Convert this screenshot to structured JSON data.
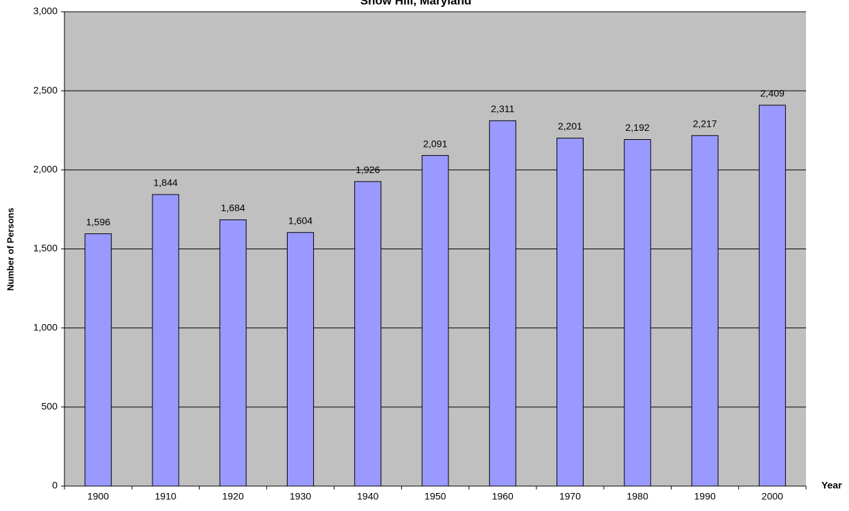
{
  "chart_data": {
    "type": "bar",
    "title": "Snow Hill, Maryland",
    "x_label": "Year",
    "y_label": "Number of Persons",
    "categories": [
      "1900",
      "1910",
      "1920",
      "1930",
      "1940",
      "1950",
      "1960",
      "1970",
      "1980",
      "1990",
      "2000"
    ],
    "values": [
      1596,
      1844,
      1684,
      1604,
      1926,
      2091,
      2311,
      2201,
      2192,
      2217,
      2409
    ],
    "value_labels": [
      "1,596",
      "1,844",
      "1,684",
      "1,604",
      "1,926",
      "2,091",
      "2,311",
      "2,201",
      "2,192",
      "2,217",
      "2,409"
    ],
    "color": "#9999ff",
    "ylim": [
      0,
      3000
    ],
    "yticks": [
      0,
      500,
      {
        "value": 1000,
        "label": "1,000"
      },
      {
        "value": 1500,
        "label": "1,500"
      },
      {
        "value": 2000,
        "label": "2,000"
      },
      {
        "value": 2500,
        "label": "2,500"
      },
      {
        "value": 3000,
        "label": "3,000"
      }
    ],
    "grid": true
  }
}
